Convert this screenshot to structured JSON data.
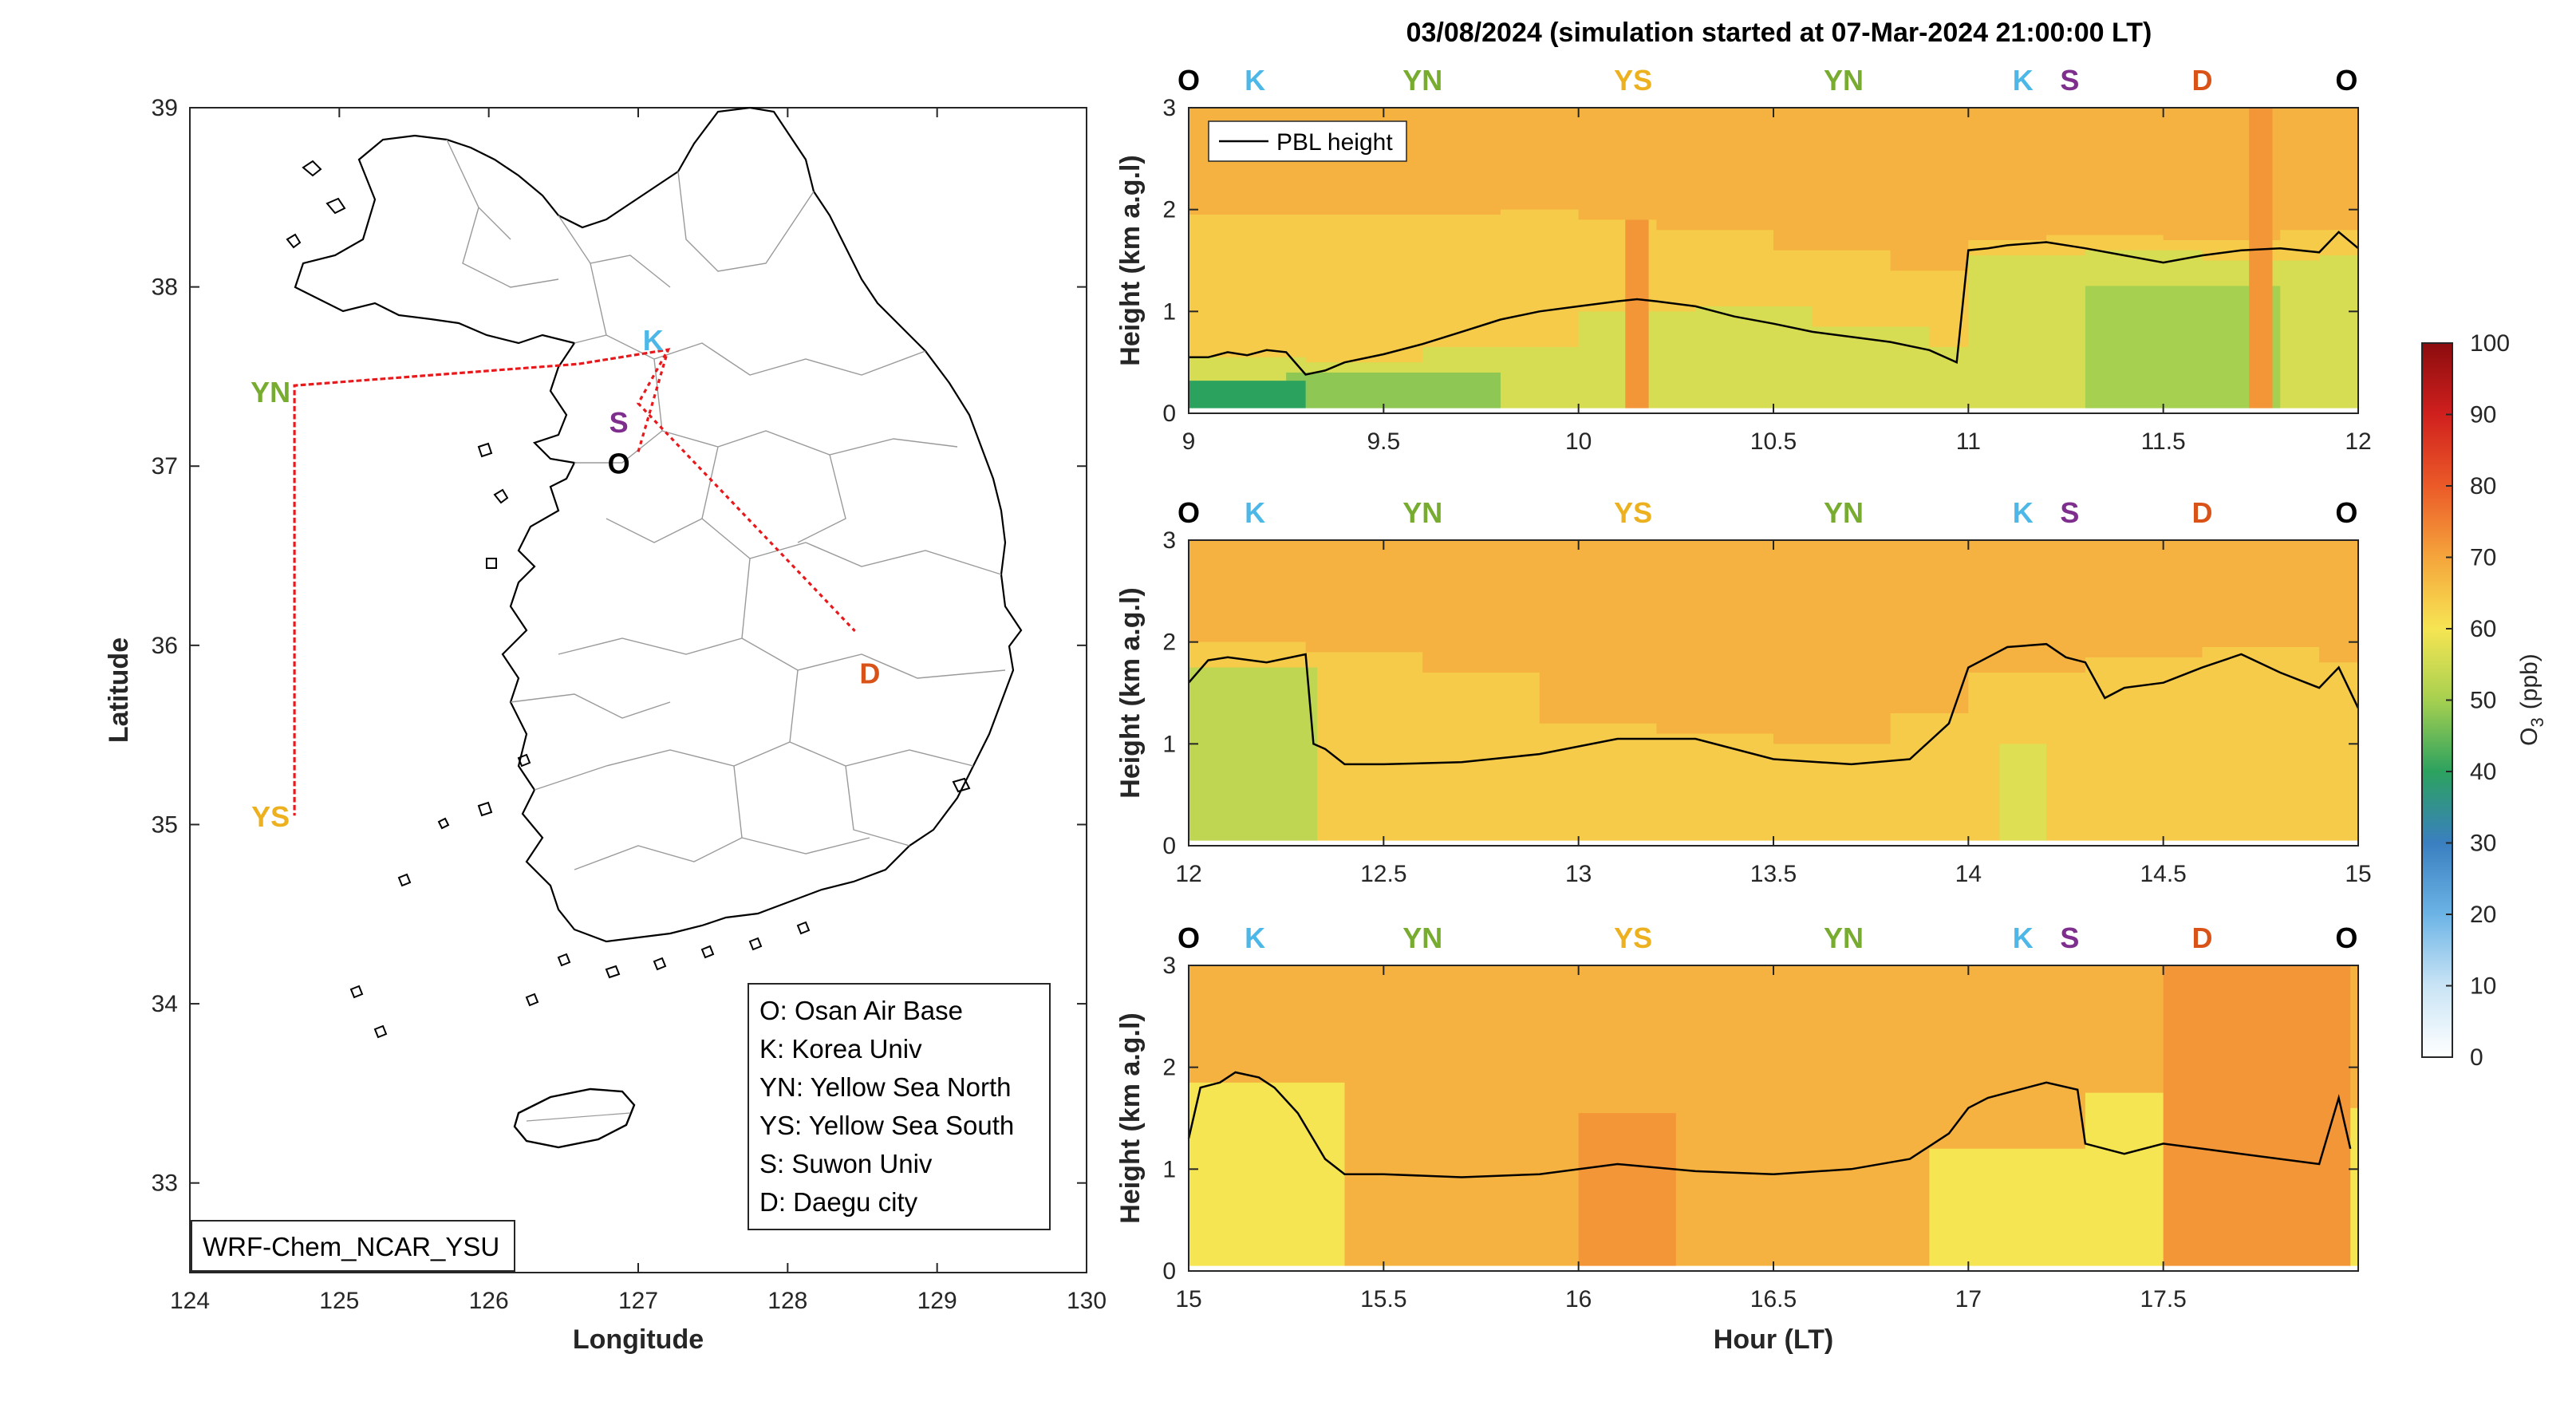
{
  "title": "03/08/2024 (simulation started at 07-Mar-2024 21:00:00 LT)",
  "colors": {
    "O": "#000000",
    "K": "#4DB8E8",
    "YN": "#77AC30",
    "YS": "#EDB120",
    "S": "#7E2F8E",
    "D": "#D95319",
    "route": "#E8191C"
  },
  "map": {
    "xlabel": "Longitude",
    "ylabel": "Latitude",
    "xlim": [
      124,
      130
    ],
    "ylim": [
      32.5,
      39
    ],
    "xticks": [
      "124",
      "125",
      "126",
      "127",
      "128",
      "129",
      "130"
    ],
    "yticks": [
      "33",
      "34",
      "35",
      "36",
      "37",
      "38",
      "39"
    ],
    "model_label": "WRF-Chem_NCAR_YSU",
    "legend": [
      "O: Osan Air Base",
      "K: Korea Univ",
      "YN: Yellow Sea North",
      "YS: Yellow Sea South",
      "S: Suwon Univ",
      "D: Daegu city"
    ],
    "sites": [
      {
        "code": "K",
        "lon": 127.1,
        "lat": 37.71
      },
      {
        "code": "S",
        "lon": 126.87,
        "lat": 37.25
      },
      {
        "code": "O",
        "lon": 126.87,
        "lat": 37.02
      },
      {
        "code": "YN",
        "lon": 124.54,
        "lat": 37.42
      },
      {
        "code": "YS",
        "lon": 124.54,
        "lat": 35.05
      },
      {
        "code": "D",
        "lon": 128.55,
        "lat": 35.85
      }
    ],
    "route": [
      [
        127.0,
        37.08
      ],
      [
        127.2,
        37.65
      ],
      [
        126.6,
        37.57
      ],
      [
        124.7,
        37.45
      ],
      [
        124.7,
        35.05
      ],
      [
        124.7,
        37.45
      ],
      [
        126.6,
        37.57
      ],
      [
        127.2,
        37.65
      ],
      [
        127.0,
        37.35
      ],
      [
        128.45,
        36.08
      ]
    ]
  },
  "chart_data": [
    {
      "type": "heatmap",
      "xlim": [
        9,
        12
      ],
      "ylim": [
        0,
        3
      ],
      "xticks": [
        "9",
        "9.5",
        "10",
        "10.5",
        "11",
        "11.5",
        "12"
      ],
      "yticks": [
        "0",
        "1",
        "2",
        "3"
      ],
      "ylabel": "Height (km a.g.l)",
      "top_labels": [
        {
          "code": "O",
          "x": 9.0
        },
        {
          "code": "K",
          "x": 9.17
        },
        {
          "code": "YN",
          "x": 9.6
        },
        {
          "code": "YS",
          "x": 10.14
        },
        {
          "code": "YN",
          "x": 10.68
        },
        {
          "code": "K",
          "x": 11.14
        },
        {
          "code": "S",
          "x": 11.26
        },
        {
          "code": "D",
          "x": 11.6
        },
        {
          "code": "O",
          "x": 11.97
        }
      ],
      "legend": [
        "PBL height"
      ],
      "pbl": {
        "x": [
          9.0,
          9.05,
          9.1,
          9.15,
          9.2,
          9.25,
          9.3,
          9.35,
          9.4,
          9.5,
          9.6,
          9.7,
          9.8,
          9.9,
          10.0,
          10.1,
          10.15,
          10.2,
          10.3,
          10.4,
          10.5,
          10.6,
          10.7,
          10.8,
          10.9,
          10.97,
          11.0,
          11.05,
          11.1,
          11.2,
          11.3,
          11.4,
          11.5,
          11.6,
          11.7,
          11.8,
          11.9,
          11.95,
          12.0
        ],
        "y": [
          0.55,
          0.55,
          0.6,
          0.57,
          0.62,
          0.6,
          0.38,
          0.42,
          0.5,
          0.58,
          0.68,
          0.8,
          0.92,
          1.0,
          1.05,
          1.1,
          1.12,
          1.1,
          1.05,
          0.95,
          0.88,
          0.8,
          0.75,
          0.7,
          0.62,
          0.5,
          1.6,
          1.62,
          1.65,
          1.68,
          1.62,
          1.55,
          1.48,
          1.55,
          1.6,
          1.62,
          1.58,
          1.78,
          1.62
        ]
      },
      "o3_layers": [
        {
          "name": "mid",
          "o3": 64,
          "x": [
            9.0,
            9.5,
            9.8,
            10.0,
            10.2,
            10.5,
            10.8,
            11.0,
            11.2,
            11.5,
            11.8,
            12.0
          ],
          "top": [
            1.95,
            1.95,
            2.0,
            1.9,
            1.8,
            1.6,
            1.4,
            1.7,
            1.75,
            1.7,
            1.8,
            1.85
          ]
        },
        {
          "name": "low",
          "o3": 56,
          "x": [
            9.0,
            9.3,
            9.6,
            10.0,
            10.3,
            10.6,
            10.9,
            11.0,
            11.3,
            11.6,
            11.9,
            12.0
          ],
          "top": [
            0.55,
            0.5,
            0.65,
            1.0,
            1.05,
            0.85,
            0.65,
            1.55,
            1.6,
            1.5,
            1.55,
            1.6
          ]
        }
      ],
      "o3_patches": [
        {
          "o3": 48,
          "x0": 9.25,
          "x1": 9.8,
          "top": 0.4
        },
        {
          "o3": 50,
          "x0": 11.3,
          "x1": 11.8,
          "top": 1.25
        },
        {
          "o3": 40,
          "x0": 9.0,
          "x1": 9.3,
          "top": 0.32
        },
        {
          "o3": 72,
          "x0": 10.12,
          "x1": 10.18,
          "top": 1.9
        },
        {
          "o3": 72,
          "x0": 11.72,
          "x1": 11.78,
          "top": 3.0
        }
      ]
    },
    {
      "type": "heatmap",
      "xlim": [
        12,
        15
      ],
      "ylim": [
        0,
        3
      ],
      "xticks": [
        "12",
        "12.5",
        "13",
        "13.5",
        "14",
        "14.5",
        "15"
      ],
      "yticks": [
        "0",
        "1",
        "2",
        "3"
      ],
      "ylabel": "Height (km a.g.l)",
      "top_labels": [
        {
          "code": "O",
          "x": 12.0
        },
        {
          "code": "K",
          "x": 12.17
        },
        {
          "code": "YN",
          "x": 12.6
        },
        {
          "code": "YS",
          "x": 13.14
        },
        {
          "code": "YN",
          "x": 13.68
        },
        {
          "code": "K",
          "x": 14.14
        },
        {
          "code": "S",
          "x": 14.26
        },
        {
          "code": "D",
          "x": 14.6
        },
        {
          "code": "O",
          "x": 14.97
        }
      ],
      "pbl": {
        "x": [
          12.0,
          12.05,
          12.1,
          12.2,
          12.3,
          12.32,
          12.35,
          12.4,
          12.5,
          12.7,
          12.9,
          13.1,
          13.3,
          13.5,
          13.7,
          13.85,
          13.95,
          14.0,
          14.05,
          14.1,
          14.2,
          14.25,
          14.3,
          14.35,
          14.4,
          14.5,
          14.6,
          14.7,
          14.8,
          14.9,
          14.95,
          15.0
        ],
        "y": [
          1.6,
          1.82,
          1.85,
          1.8,
          1.88,
          1.0,
          0.95,
          0.8,
          0.8,
          0.82,
          0.9,
          1.05,
          1.05,
          0.85,
          0.8,
          0.85,
          1.2,
          1.75,
          1.85,
          1.95,
          1.98,
          1.85,
          1.8,
          1.45,
          1.55,
          1.6,
          1.75,
          1.88,
          1.7,
          1.55,
          1.75,
          1.35
        ]
      },
      "o3_layers": [
        {
          "name": "mid",
          "o3": 64,
          "x": [
            12.0,
            12.3,
            12.6,
            12.9,
            13.2,
            13.5,
            13.8,
            14.0,
            14.3,
            14.6,
            14.9,
            15.0
          ],
          "top": [
            2.0,
            1.9,
            1.7,
            1.2,
            1.1,
            1.0,
            1.3,
            1.7,
            1.85,
            1.95,
            1.8,
            1.75
          ]
        },
        {
          "name": "low",
          "o3": 60,
          "x": [
            12.0,
            15.0
          ],
          "top": [
            0.05,
            0.05
          ]
        }
      ],
      "o3_patches": [
        {
          "o3": 53,
          "x0": 12.0,
          "x1": 12.33,
          "top": 1.75
        },
        {
          "o3": 57,
          "x0": 14.08,
          "x1": 14.2,
          "top": 1.0
        }
      ]
    },
    {
      "type": "heatmap",
      "xlim": [
        15,
        18
      ],
      "ylim": [
        0,
        3
      ],
      "xticks": [
        "15",
        "15.5",
        "16",
        "16.5",
        "17",
        "17.5"
      ],
      "yticks": [
        "0",
        "1",
        "2",
        "3"
      ],
      "ylabel": "Height (km a.g.l)",
      "xlabel": "Hour (LT)",
      "top_labels": [
        {
          "code": "O",
          "x": 15.0
        },
        {
          "code": "K",
          "x": 15.17
        },
        {
          "code": "YN",
          "x": 15.6
        },
        {
          "code": "YS",
          "x": 16.14
        },
        {
          "code": "YN",
          "x": 16.68
        },
        {
          "code": "K",
          "x": 17.14
        },
        {
          "code": "S",
          "x": 17.26
        },
        {
          "code": "D",
          "x": 17.6
        },
        {
          "code": "O",
          "x": 17.97
        }
      ],
      "pbl": {
        "x": [
          15.0,
          15.03,
          15.08,
          15.12,
          15.18,
          15.22,
          15.28,
          15.35,
          15.4,
          15.5,
          15.7,
          15.9,
          16.1,
          16.3,
          16.5,
          16.7,
          16.85,
          16.95,
          17.0,
          17.05,
          17.1,
          17.2,
          17.28,
          17.3,
          17.4,
          17.5,
          17.6,
          17.7,
          17.8,
          17.9,
          17.95,
          17.98
        ],
        "y": [
          1.3,
          1.8,
          1.85,
          1.95,
          1.9,
          1.8,
          1.55,
          1.1,
          0.95,
          0.95,
          0.92,
          0.95,
          1.05,
          0.98,
          0.95,
          1.0,
          1.1,
          1.35,
          1.6,
          1.7,
          1.75,
          1.85,
          1.78,
          1.25,
          1.15,
          1.25,
          1.2,
          1.15,
          1.1,
          1.05,
          1.7,
          1.2
        ]
      },
      "o3_layers": [
        {
          "name": "low",
          "o3": 60,
          "x": [
            15.0,
            15.3,
            15.4,
            16.8,
            16.9,
            17.3,
            17.9,
            18.0
          ],
          "top": [
            1.85,
            1.85,
            0.05,
            0.05,
            1.2,
            1.75,
            1.6,
            1.3
          ]
        }
      ],
      "o3_patches": [
        {
          "o3": 72,
          "x0": 16.0,
          "x1": 16.25,
          "top": 1.55
        },
        {
          "o3": 72,
          "x0": 17.5,
          "x1": 17.98,
          "top": 3.0
        }
      ]
    }
  ],
  "colorbar": {
    "label": "O",
    "label_sub": "3",
    "label_unit": "(ppb)",
    "min": 0,
    "max": 100,
    "ticks": [
      "0",
      "10",
      "20",
      "30",
      "40",
      "50",
      "60",
      "70",
      "80",
      "90",
      "100"
    ]
  }
}
